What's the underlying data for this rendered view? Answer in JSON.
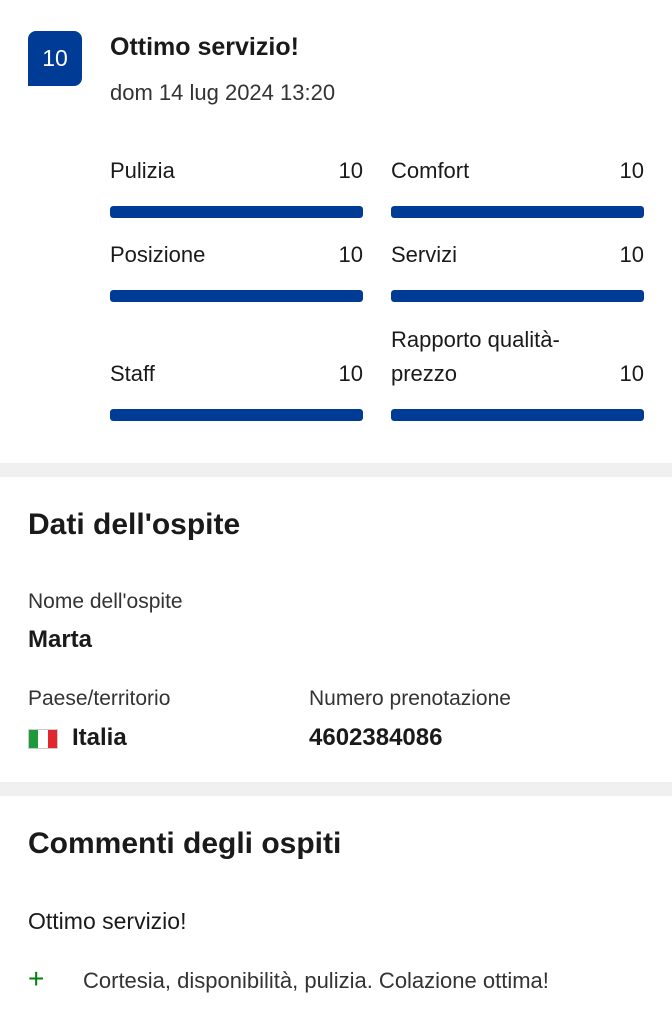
{
  "review": {
    "score": "10",
    "title": "Ottimo servizio!",
    "date": "dom 14 lug 2024 13:20",
    "accent": "#003b95",
    "ratings": [
      {
        "label": "Pulizia",
        "value": "10",
        "fraction": 1.0
      },
      {
        "label": "Comfort",
        "value": "10",
        "fraction": 1.0
      },
      {
        "label": "Posizione",
        "value": "10",
        "fraction": 1.0
      },
      {
        "label": "Servizi",
        "value": "10",
        "fraction": 1.0
      },
      {
        "label": "Staff",
        "value": "10",
        "fraction": 1.0
      },
      {
        "label": "Rapporto qualità-prezzo",
        "value": "10",
        "fraction": 1.0
      }
    ]
  },
  "guest": {
    "heading": "Dati dell'ospite",
    "name_label": "Nome dell'ospite",
    "name": "Marta",
    "country_label": "Paese/territorio",
    "country": "Italia",
    "country_flag_icon": "italy-flag-icon",
    "booking_label": "Numero prenotazione",
    "booking_number": "4602384086"
  },
  "comments": {
    "heading": "Commenti degli ospiti",
    "title": "Ottimo servizio!",
    "positive_icon": "plus-icon",
    "positive_color": "#008009",
    "positive": "Cortesia, disponibilità, pulizia. Colazione ottima!"
  }
}
